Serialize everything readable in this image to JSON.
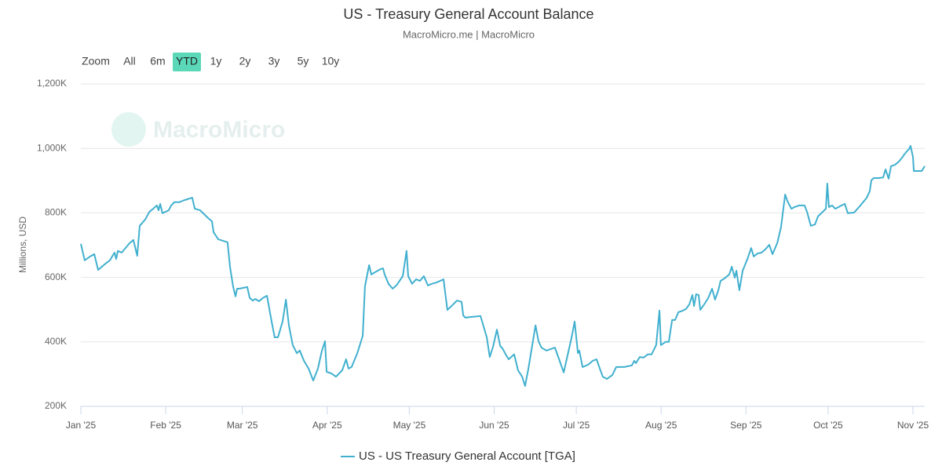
{
  "chart_data": {
    "type": "line",
    "title": "US - Treasury General Account Balance",
    "subtitle": "MacroMicro.me | MacroMicro",
    "y_label": "Millions, USD",
    "grid": true,
    "legend_position": "bottom",
    "xlim": [
      0,
      308.3
    ],
    "xticks": [
      {
        "value": 0,
        "label": "Jan '25"
      },
      {
        "value": 31,
        "label": "Feb '25"
      },
      {
        "value": 59,
        "label": "Mar '25"
      },
      {
        "value": 90,
        "label": "Apr '25"
      },
      {
        "value": 120,
        "label": "May '25"
      },
      {
        "value": 151,
        "label": "Jun '25"
      },
      {
        "value": 181,
        "label": "Jul '25"
      },
      {
        "value": 212,
        "label": "Aug '25"
      },
      {
        "value": 243,
        "label": "Sep '25"
      },
      {
        "value": 273,
        "label": "Oct '25"
      },
      {
        "value": 304,
        "label": "Nov '25"
      }
    ],
    "ylim": [
      200,
      1200
    ],
    "yticks": [
      {
        "value": 200,
        "label": "200K"
      },
      {
        "value": 400,
        "label": "400K"
      },
      {
        "value": 600,
        "label": "600K"
      },
      {
        "value": 800,
        "label": "800K"
      },
      {
        "value": 1000,
        "label": "1,000K"
      },
      {
        "value": 1200,
        "label": "1,200K"
      }
    ],
    "x": [
      0,
      1.4,
      3.4,
      4.9,
      6.3,
      8.6,
      10.6,
      12.3,
      12.9,
      13.5,
      14.9,
      17.8,
      19.2,
      20.6,
      21.5,
      23.5,
      25.0,
      26.4,
      27.8,
      28.4,
      29.0,
      29.8,
      32.1,
      33.0,
      34.1,
      35.9,
      37.9,
      40.7,
      41.6,
      43.6,
      46.5,
      47.9,
      48.5,
      50.2,
      53.6,
      54.5,
      55.6,
      56.5,
      57.1,
      57.9,
      60.8,
      61.7,
      62.8,
      63.7,
      65.1,
      66.5,
      68.0,
      69.7,
      70.8,
      72.0,
      73.7,
      74.9,
      76.0,
      77.4,
      78.9,
      80.0,
      81.5,
      83.2,
      84.9,
      86.6,
      88.0,
      89.2,
      89.8,
      91.5,
      93.2,
      95.5,
      96.9,
      97.8,
      98.9,
      101.0,
      103.0,
      103.8,
      105.3,
      106.1,
      107.5,
      109.6,
      110.4,
      111.0,
      112.4,
      113.9,
      115.3,
      117.6,
      119.0,
      119.6,
      121.0,
      122.5,
      123.9,
      125.3,
      126.8,
      128.2,
      129.9,
      132.5,
      133.9,
      135.4,
      137.4,
      139.1,
      139.7,
      140.5,
      142.0,
      146.0,
      148.3,
      149.4,
      150.6,
      152.0,
      153.2,
      154.0,
      155.2,
      156.3,
      158.3,
      159.7,
      161.2,
      162.3,
      163.5,
      166.1,
      167.2,
      168.3,
      170.1,
      171.8,
      173.2,
      174.7,
      176.4,
      177.5,
      179.3,
      180.4,
      181.6,
      182.1,
      183.3,
      185.3,
      187.0,
      188.4,
      189.6,
      190.7,
      192.2,
      194.2,
      195.6,
      196.5,
      198.5,
      201.3,
      202.2,
      202.8,
      204.2,
      205.6,
      207.1,
      208.5,
      210.2,
      211.4,
      211.9,
      213.7,
      214.8,
      216.0,
      217.1,
      218.3,
      220.0,
      221.1,
      222.3,
      223.4,
      224.0,
      224.8,
      225.7,
      226.3,
      227.7,
      229.2,
      230.6,
      231.7,
      232.9,
      233.7,
      235.2,
      236.9,
      237.8,
      238.9,
      239.5,
      240.6,
      241.8,
      243.5,
      244.9,
      245.8,
      247.2,
      248.7,
      250.1,
      251.5,
      252.7,
      254.4,
      255.8,
      257.3,
      258.1,
      259.6,
      260.7,
      262.4,
      264.4,
      265.3,
      266.7,
      268.2,
      269.3,
      271.0,
      272.2,
      272.7,
      273.3,
      274.5,
      275.6,
      276.8,
      277.9,
      279.1,
      280.2,
      282.5,
      284.8,
      287.1,
      288.2,
      288.8,
      289.7,
      291.7,
      293.1,
      294.0,
      295.1,
      296.0,
      297.4,
      298.8,
      300.3,
      300.8,
      302.0,
      302.6,
      303.1,
      304.0,
      304.3,
      306.0,
      307.2,
      308.3
    ],
    "series": [
      {
        "name": "US - US Treasury General Account [TGA]",
        "color": "#41b0cf",
        "values": [
          704,
          653,
          665,
          672,
          623,
          640,
          653,
          677,
          657,
          682,
          677,
          706,
          716,
          667,
          760,
          779,
          803,
          813,
          823,
          808,
          828,
          799,
          808,
          823,
          833,
          833,
          840,
          847,
          813,
          808,
          784,
          774,
          740,
          718,
          709,
          633,
          572,
          541,
          565,
          565,
          570,
          536,
          528,
          533,
          526,
          536,
          543,
          463,
          414,
          414,
          463,
          531,
          451,
          390,
          365,
          373,
          341,
          317,
          280,
          317,
          370,
          402,
          307,
          302,
          292,
          312,
          346,
          317,
          322,
          365,
          419,
          572,
          638,
          609,
          616,
          626,
          628,
          609,
          580,
          565,
          575,
          604,
          682,
          604,
          580,
          594,
          589,
          604,
          575,
          580,
          584,
          594,
          499,
          511,
          528,
          524,
          482,
          475,
          477,
          480,
          414,
          353,
          385,
          438,
          387,
          380,
          361,
          346,
          361,
          312,
          292,
          263,
          317,
          451,
          402,
          382,
          373,
          378,
          382,
          346,
          305,
          346,
          414,
          463,
          365,
          373,
          322,
          329,
          341,
          346,
          317,
          292,
          285,
          297,
          322,
          322,
          322,
          327,
          341,
          334,
          353,
          351,
          361,
          361,
          390,
          497,
          390,
          400,
          400,
          468,
          468,
          492,
          497,
          502,
          516,
          545,
          511,
          548,
          545,
          499,
          516,
          536,
          565,
          531,
          560,
          589,
          597,
          609,
          633,
          599,
          621,
          560,
          621,
          657,
          691,
          665,
          674,
          677,
          687,
          701,
          672,
          706,
          755,
          857,
          837,
          813,
          818,
          823,
          823,
          803,
          760,
          764,
          789,
          803,
          813,
          891,
          818,
          823,
          813,
          818,
          823,
          828,
          799,
          801,
          823,
          847,
          867,
          901,
          908,
          908,
          910,
          935,
          906,
          945,
          949,
          959,
          974,
          981,
          993,
          998,
          1008,
          974,
          930,
          930,
          930,
          945
        ]
      }
    ],
    "range_selector": {
      "label": "Zoom",
      "buttons": [
        "All",
        "6m",
        "YTD",
        "1y",
        "2y",
        "3y",
        "5y",
        "10y"
      ],
      "selected": "YTD"
    },
    "watermark": "MacroMicro"
  }
}
